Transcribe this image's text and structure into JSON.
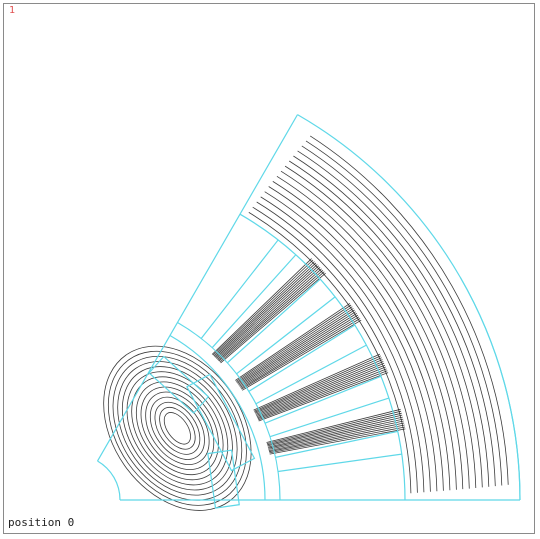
{
  "figure": {
    "index": "1",
    "position_label": "position 0"
  },
  "colors": {
    "geometry": "#5fd8e8",
    "flux_lines": "#1a1a1a",
    "frame": "#8a8a8a",
    "index_text": "#e05050"
  }
}
